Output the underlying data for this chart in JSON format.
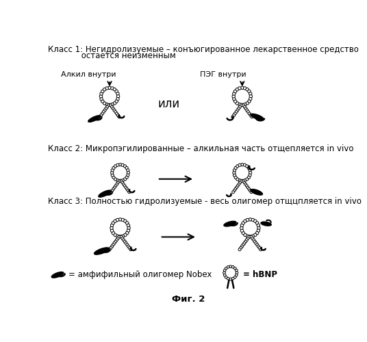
{
  "title": "Фиг. 2",
  "class1_text": "Класс 1: Негидролизуемые – конъюгированное лекарственное средство",
  "class1_text2": "             остается неизменным",
  "class2_text": "Класс 2: Микропэгилированные – алкильная часть отщепляется in vivo",
  "class3_text": "Класс 3: Полностью гидролизуемые - весь олигомер отщцпляется in vivo",
  "label_alkyl": "Алкил внутри",
  "label_peg": "ПЭГ внутри",
  "label_or": "или",
  "legend_nobex": "= амфифильный олигомер Nobex",
  "legend_hbnp": "= hBNP",
  "bg_color": "#ffffff",
  "text_color": "#000000"
}
